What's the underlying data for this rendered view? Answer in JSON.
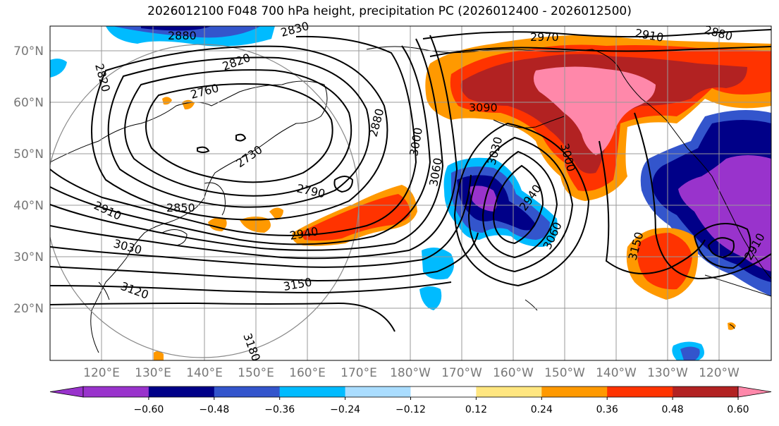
{
  "title": "2026012100 F048 700 hPa height, precipitation PC (2026012400 - 2026012500)",
  "map": {
    "lat_labels": [
      "70°N",
      "60°N",
      "50°N",
      "40°N",
      "30°N",
      "20°N"
    ],
    "lon_labels": [
      "120°E",
      "130°E",
      "140°E",
      "150°E",
      "160°E",
      "170°E",
      "180°W",
      "170°W",
      "160°W",
      "150°W",
      "140°W",
      "130°W",
      "120°W"
    ],
    "contour_labels": [
      "2880",
      "2830",
      "2820",
      "2820",
      "2760",
      "2730",
      "2790",
      "2850",
      "2910",
      "2880",
      "3000",
      "3090",
      "2970",
      "2910",
      "2880",
      "3030",
      "3060",
      "2940",
      "2940",
      "3000",
      "3060",
      "3150",
      "3030",
      "3120",
      "3150",
      "3180",
      "2910"
    ]
  },
  "colorbar": {
    "tick_labels": [
      "−0.60",
      "−0.48",
      "−0.36",
      "−0.24",
      "−0.12",
      "0.12",
      "0.24",
      "0.36",
      "0.48",
      "0.60"
    ],
    "colors": [
      "#9933cc",
      "#000088",
      "#3355cc",
      "#00bbff",
      "#aaddff",
      "#ffffff",
      "#ffe680",
      "#ff9900",
      "#ff3300",
      "#b22222",
      "#ff88aa"
    ]
  },
  "colors": {
    "purple": "#9933cc",
    "navy": "#000088",
    "blue": "#3355cc",
    "cyan": "#00bbff",
    "lightblue": "#aaddff",
    "yellow": "#ffe680",
    "orange": "#ff9900",
    "red": "#ff3300",
    "darkred": "#b22222",
    "pink": "#ff88aa"
  }
}
